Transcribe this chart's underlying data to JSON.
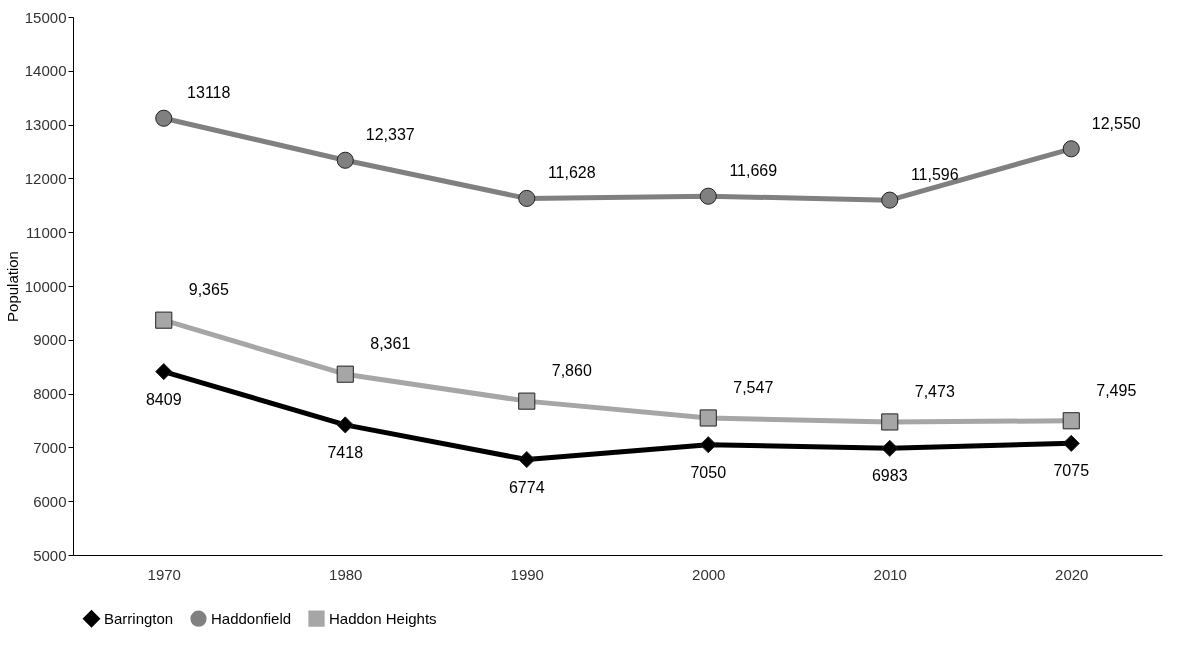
{
  "chart_data": {
    "type": "line",
    "ylabel": "Population",
    "categories": [
      "1970",
      "1980",
      "1990",
      "2000",
      "2010",
      "2020"
    ],
    "ylim": [
      5000,
      15000
    ],
    "yticks": [
      5000,
      6000,
      7000,
      8000,
      9000,
      10000,
      11000,
      12000,
      13000,
      14000,
      15000
    ],
    "grid": false,
    "legend": "bottom",
    "line_style": "solid",
    "series": [
      {
        "name": "Barrington",
        "color": "#000000",
        "marker": "diamond",
        "values": [
          8409,
          7418,
          6774,
          7050,
          6983,
          7075
        ],
        "value_labels": [
          "8409",
          "7418",
          "6774",
          "7050",
          "6983",
          "7075"
        ]
      },
      {
        "name": "Haddonfield",
        "color": "#808080",
        "marker": "circle",
        "values": [
          13118,
          12337,
          11628,
          11669,
          11596,
          12550
        ],
        "value_labels": [
          "13118",
          "12,337",
          "11,628",
          "11,669",
          "11,596",
          "12,550"
        ]
      },
      {
        "name": "Haddon Heights",
        "color": "#a6a6a6",
        "marker": "square",
        "values": [
          9365,
          8361,
          7860,
          7547,
          7473,
          7495
        ],
        "value_labels": [
          "9,365",
          "8,361",
          "7,860",
          "7,547",
          "7,473",
          "7,495"
        ]
      }
    ]
  }
}
